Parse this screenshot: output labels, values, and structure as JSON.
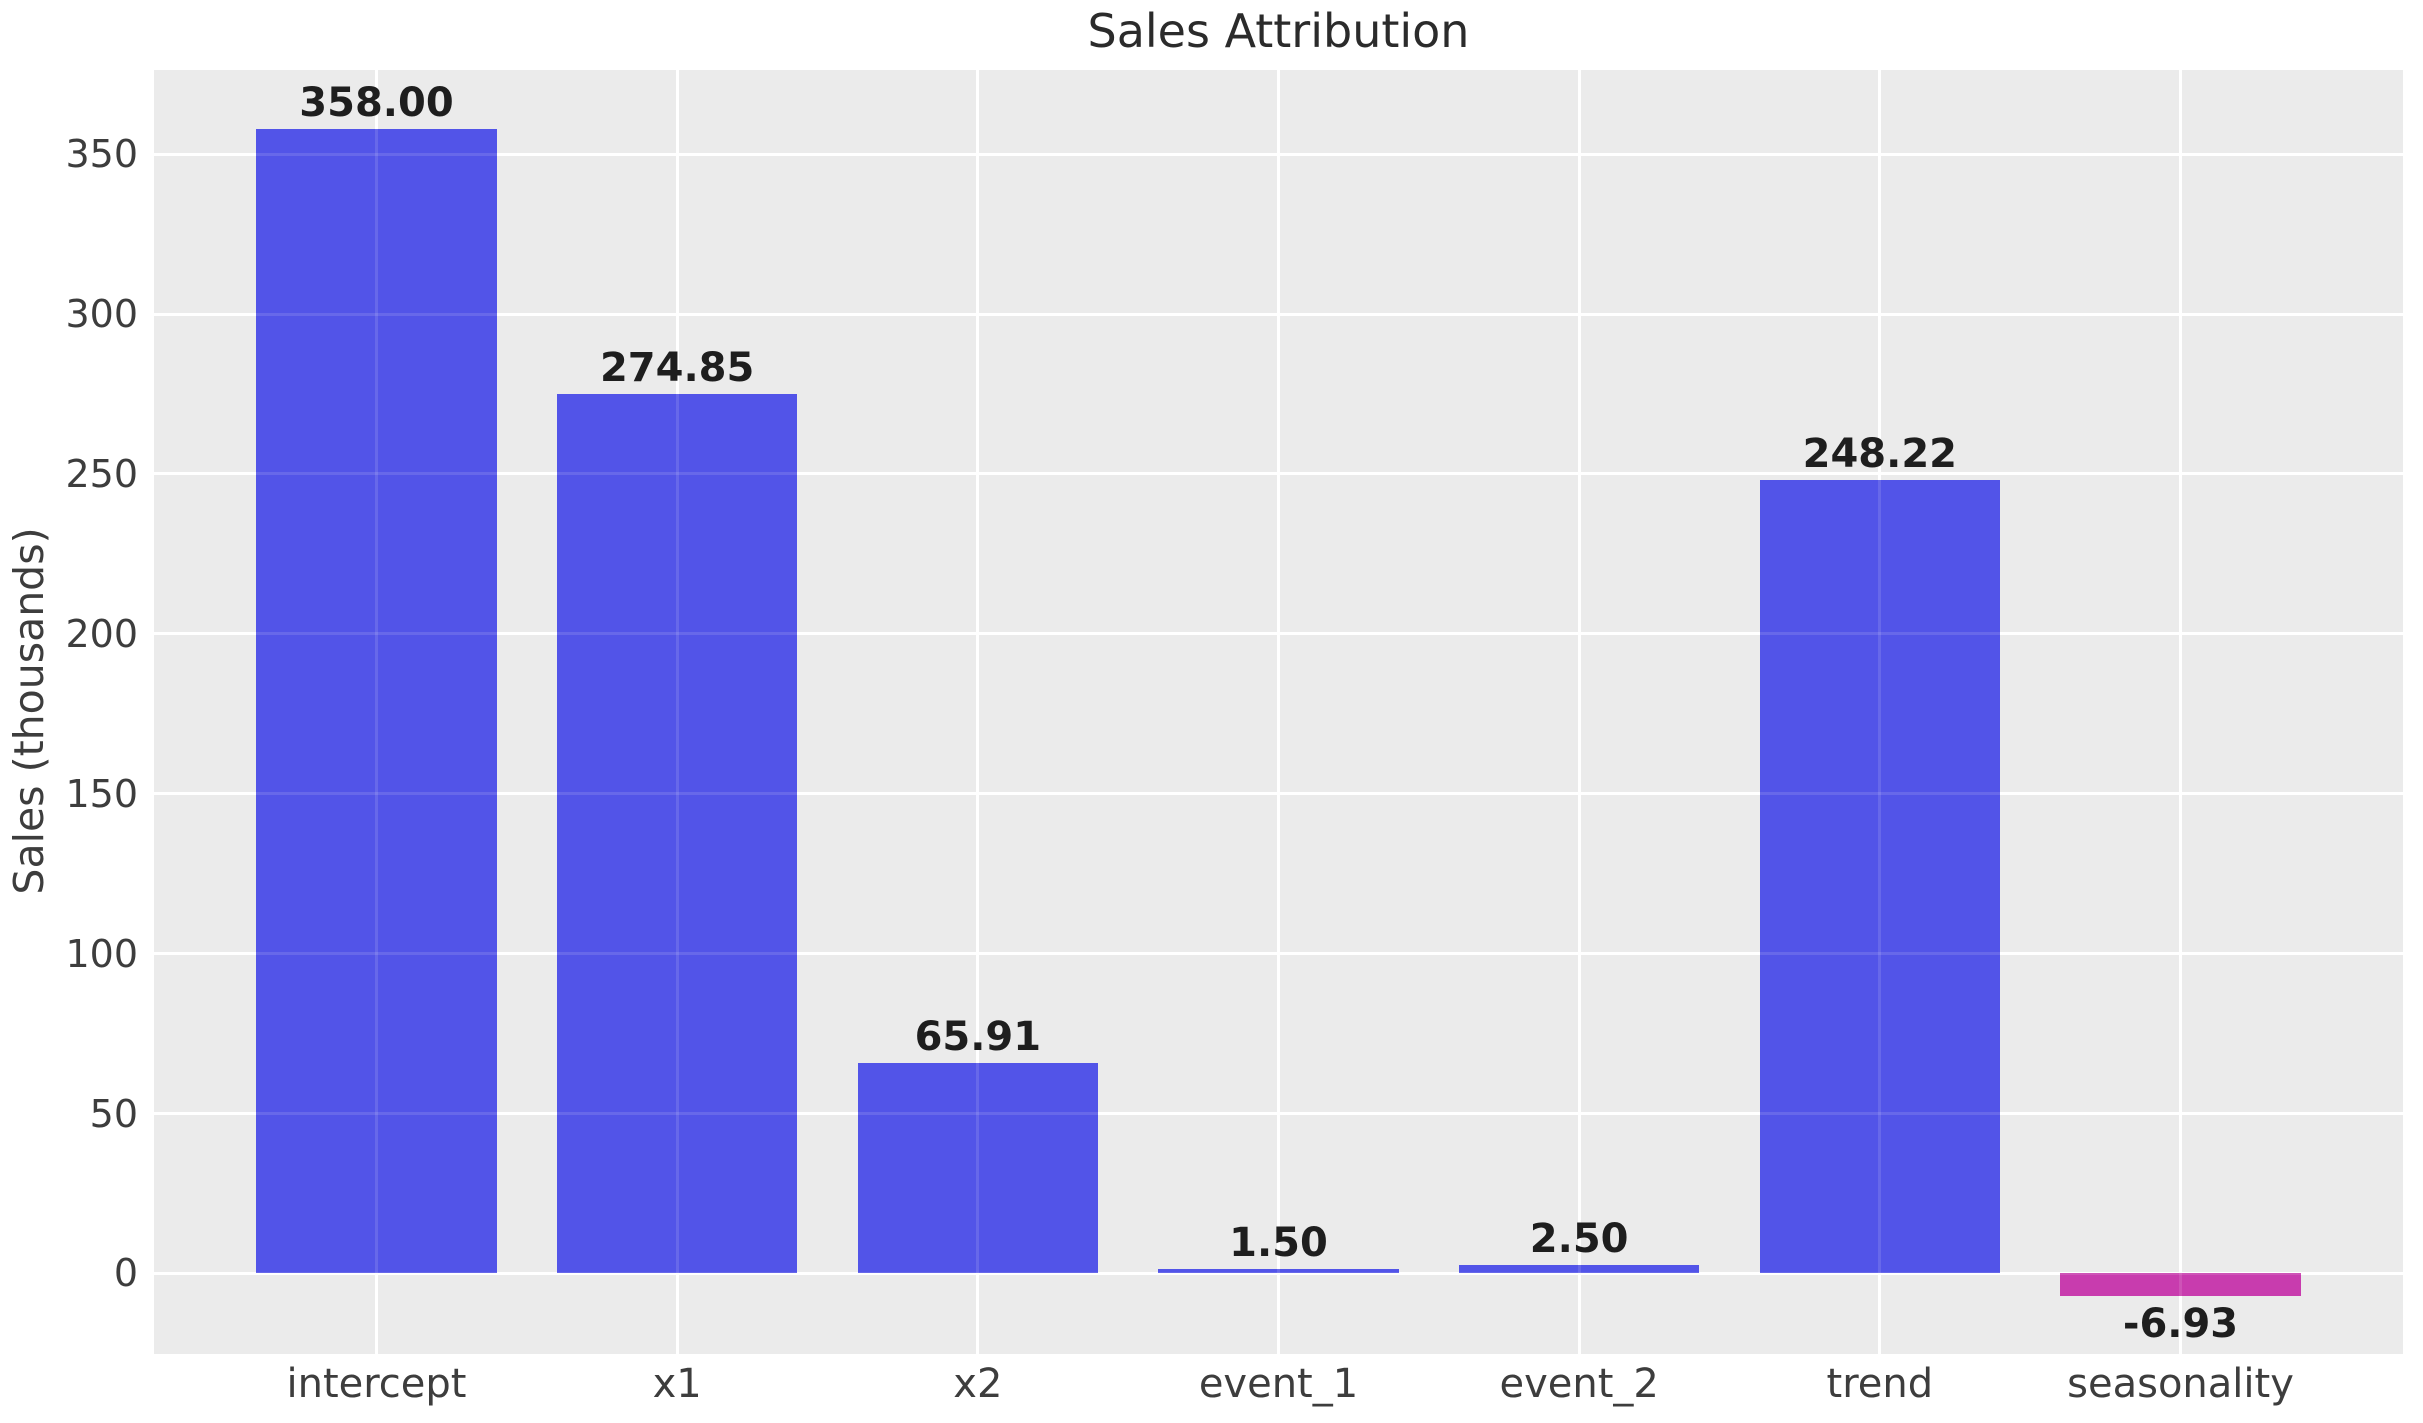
{
  "title": "Sales Attribution",
  "y_axis_label": "Sales (thousands)",
  "chart_data": {
    "type": "bar",
    "title": "Sales Attribution",
    "xlabel": "",
    "ylabel": "Sales (thousands)",
    "categories": [
      "intercept",
      "x1",
      "x2",
      "event_1",
      "event_2",
      "trend",
      "seasonality"
    ],
    "values": [
      358.0,
      274.85,
      65.91,
      1.5,
      2.5,
      248.22,
      -6.93
    ],
    "value_labels": [
      "358.00",
      "274.85",
      "65.91",
      "1.50",
      "2.50",
      "248.22",
      "-6.93"
    ],
    "ytick_labels": [
      "0",
      "50",
      "100",
      "150",
      "200",
      "250",
      "300",
      "350"
    ],
    "yticks": [
      0,
      50,
      100,
      150,
      200,
      250,
      300,
      350
    ],
    "ylim": [
      -25.2,
      376.3
    ],
    "grid": "on",
    "legend": "none",
    "colors": {
      "positive_bar": "#5254e8",
      "negative_bar": "#c83cae",
      "plot_background": "#ebebeb",
      "gridline": "#ffffff",
      "tick_text": "#3d3d3d",
      "value_text": "#1e1e1e",
      "title_text": "#2b2b2b",
      "figure_background": "#ffffff"
    }
  }
}
